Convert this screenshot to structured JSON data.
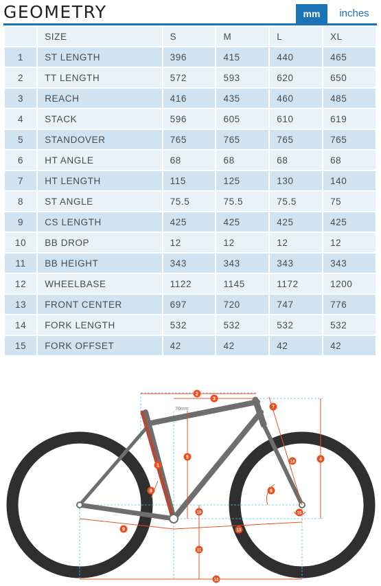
{
  "title": "GEOMETRY",
  "units": {
    "active": "mm",
    "mm_label": "mm",
    "inches_label": "inches"
  },
  "table": {
    "headers": [
      "",
      "SIZE",
      "S",
      "M",
      "L",
      "XL"
    ],
    "rows": [
      {
        "num": "1",
        "label": "ST LENGTH",
        "values": [
          "396",
          "415",
          "440",
          "465"
        ]
      },
      {
        "num": "2",
        "label": "TT LENGTH",
        "values": [
          "572",
          "593",
          "620",
          "650"
        ]
      },
      {
        "num": "3",
        "label": "REACH",
        "values": [
          "416",
          "435",
          "460",
          "485"
        ]
      },
      {
        "num": "4",
        "label": "STACK",
        "values": [
          "596",
          "605",
          "610",
          "619"
        ]
      },
      {
        "num": "5",
        "label": "STANDOVER",
        "values": [
          "765",
          "765",
          "765",
          "765"
        ]
      },
      {
        "num": "6",
        "label": "HT ANGLE",
        "values": [
          "68",
          "68",
          "68",
          "68"
        ]
      },
      {
        "num": "7",
        "label": "HT LENGTH",
        "values": [
          "115",
          "125",
          "130",
          "140"
        ]
      },
      {
        "num": "8",
        "label": "ST ANGLE",
        "values": [
          "75.5",
          "75.5",
          "75.5",
          "75"
        ]
      },
      {
        "num": "9",
        "label": "CS LENGTH",
        "values": [
          "425",
          "425",
          "425",
          "425"
        ]
      },
      {
        "num": "10",
        "label": "BB DROP",
        "values": [
          "12",
          "12",
          "12",
          "12"
        ]
      },
      {
        "num": "11",
        "label": "BB HEIGHT",
        "values": [
          "343",
          "343",
          "343",
          "343"
        ]
      },
      {
        "num": "12",
        "label": "WHEELBASE",
        "values": [
          "1122",
          "1145",
          "1172",
          "1200"
        ]
      },
      {
        "num": "13",
        "label": "FRONT CENTER",
        "values": [
          "697",
          "720",
          "747",
          "776"
        ]
      },
      {
        "num": "14",
        "label": "FORK LENGTH",
        "values": [
          "532",
          "532",
          "532",
          "532"
        ]
      },
      {
        "num": "15",
        "label": "FORK OFFSET",
        "values": [
          "42",
          "42",
          "42",
          "42"
        ]
      }
    ]
  },
  "diagram": {
    "callout_note": "70mm",
    "markers": [
      "1",
      "2",
      "3",
      "4",
      "5",
      "6",
      "7",
      "8",
      "9",
      "10",
      "11",
      "12",
      "13",
      "14",
      "15"
    ],
    "colors": {
      "frame": "#6e6e6e",
      "tire": "#2f2f2f",
      "dimension": "#e8501f",
      "guide": "#5bc0de",
      "accent": "#1a73b7"
    }
  }
}
